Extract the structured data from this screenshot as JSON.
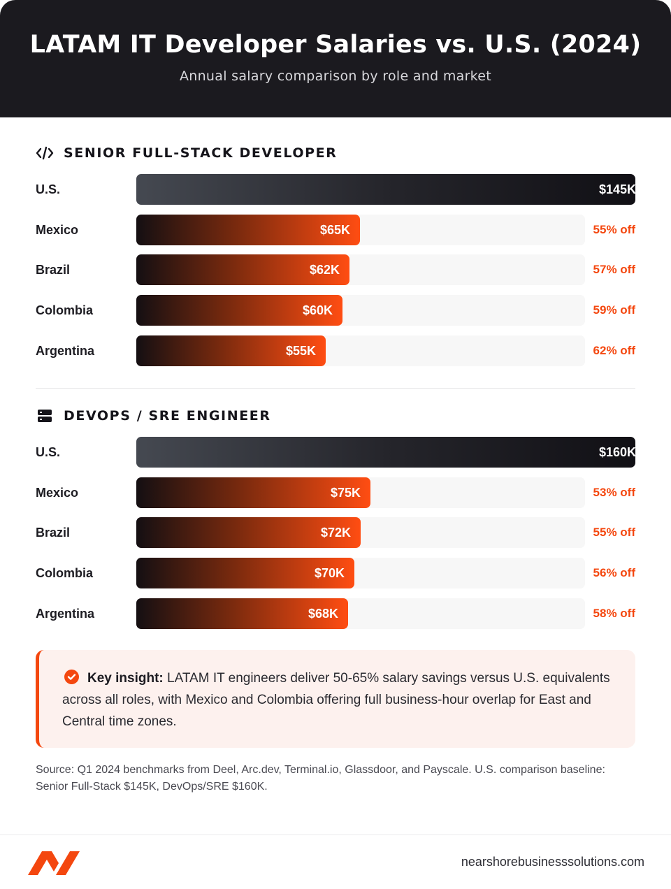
{
  "header": {
    "title": "LATAM IT Developer Salaries vs. U.S. (2024)",
    "subtitle": "Annual salary comparison by role and market"
  },
  "chart_data": [
    {
      "type": "bar",
      "orientation": "horizontal",
      "title": "SENIOR FULL-STACK DEVELOPER",
      "icon": "code-icon",
      "unit": "USD thousands",
      "categories": [
        "U.S.",
        "Mexico",
        "Brazil",
        "Colombia",
        "Argentina"
      ],
      "values": [
        145,
        65,
        62,
        60,
        55
      ],
      "value_labels": [
        "$145K",
        "$65K",
        "$62K",
        "$60K",
        "$55K"
      ],
      "discount_labels": [
        "",
        "55% off",
        "57% off",
        "59% off",
        "62% off"
      ]
    },
    {
      "type": "bar",
      "orientation": "horizontal",
      "title": "DEVOPS / SRE ENGINEER",
      "icon": "server-icon",
      "unit": "USD thousands",
      "categories": [
        "U.S.",
        "Mexico",
        "Brazil",
        "Colombia",
        "Argentina"
      ],
      "values": [
        160,
        75,
        72,
        70,
        68
      ],
      "value_labels": [
        "$160K",
        "$75K",
        "$72K",
        "$70K",
        "$68K"
      ],
      "discount_labels": [
        "",
        "53% off",
        "55% off",
        "56% off",
        "58% off"
      ]
    }
  ],
  "insight": {
    "lead": "Key insight:",
    "text": "LATAM IT engineers deliver 50-65% salary savings versus U.S. equivalents across all roles, with Mexico and Colombia offering full business-hour overlap for East and Central time zones."
  },
  "source": "Source: Q1 2024 benchmarks from Deel, Arc.dev, Terminal.io, Glassdoor, and Payscale. U.S. comparison baseline: Senior Full-Stack $145K, DevOps/SRE $160K.",
  "footer": {
    "site": "nearshorebusinesssolutions.com"
  },
  "colors": {
    "accent": "#f4470f",
    "header_bg": "#1b1a1f",
    "track": "#f7f7f7",
    "insight_bg": "#fdf1ee"
  }
}
